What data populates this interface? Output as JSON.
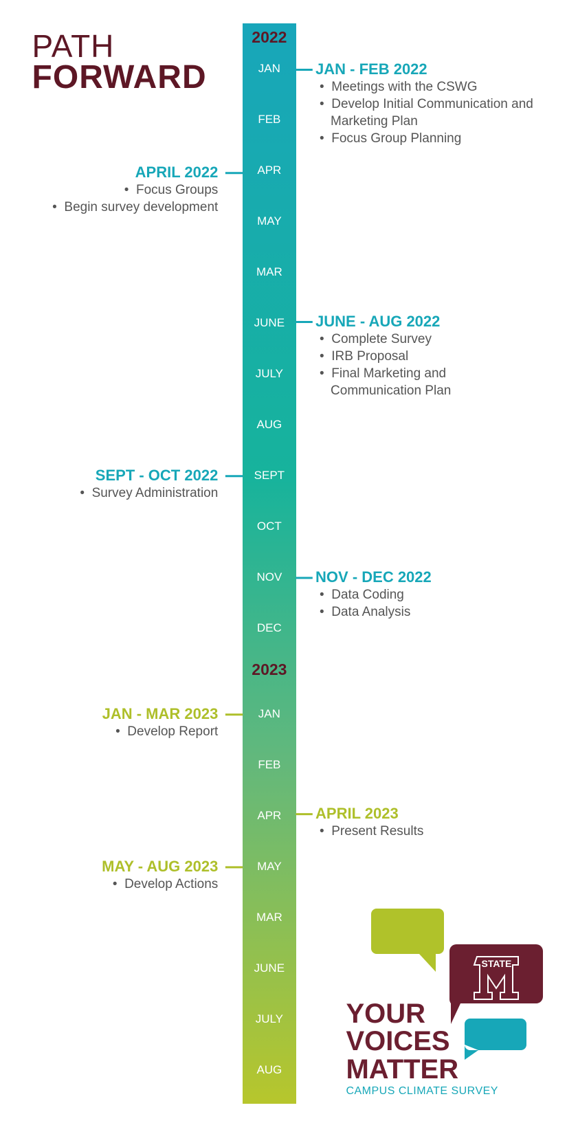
{
  "title": {
    "line1": "PATH",
    "line2": "FORWARD"
  },
  "years": [
    {
      "label": "2022",
      "months": [
        "JAN",
        "FEB",
        "APR",
        "MAY",
        "MAR",
        "JUNE",
        "JULY",
        "AUG",
        "SEPT",
        "OCT",
        "NOV",
        "DEC"
      ]
    },
    {
      "label": "2023",
      "months": [
        "JAN",
        "FEB",
        "APR",
        "MAY",
        "MAR",
        "JUNE",
        "JULY",
        "AUG"
      ]
    }
  ],
  "events": [
    {
      "heading": "JAN - FEB 2022",
      "items": [
        "Meetings with the CSWG",
        "Develop Initial Communication and Marketing Plan",
        "Focus Group Planning"
      ]
    },
    {
      "heading": "APRIL 2022",
      "items": [
        "Focus Groups",
        "Begin survey development"
      ]
    },
    {
      "heading": "JUNE - AUG 2022",
      "items": [
        "Complete Survey",
        "IRB Proposal",
        "Final Marketing and Communication Plan"
      ]
    },
    {
      "heading": "SEPT - OCT 2022",
      "items": [
        "Survey Administration"
      ]
    },
    {
      "heading": "NOV - DEC 2022",
      "items": [
        "Data Coding",
        "Data Analysis"
      ]
    },
    {
      "heading": "JAN - MAR 2023",
      "items": [
        "Develop Report"
      ]
    },
    {
      "heading": "APRIL 2023",
      "items": [
        "Present Results"
      ]
    },
    {
      "heading": "MAY - AUG 2023",
      "items": [
        "Develop Actions"
      ]
    }
  ],
  "logo": {
    "badge": "STATE",
    "line1": "YOUR",
    "line2": "VOICES",
    "line3": "MATTER",
    "subtitle": "CAMPUS CLIMATE SURVEY"
  }
}
